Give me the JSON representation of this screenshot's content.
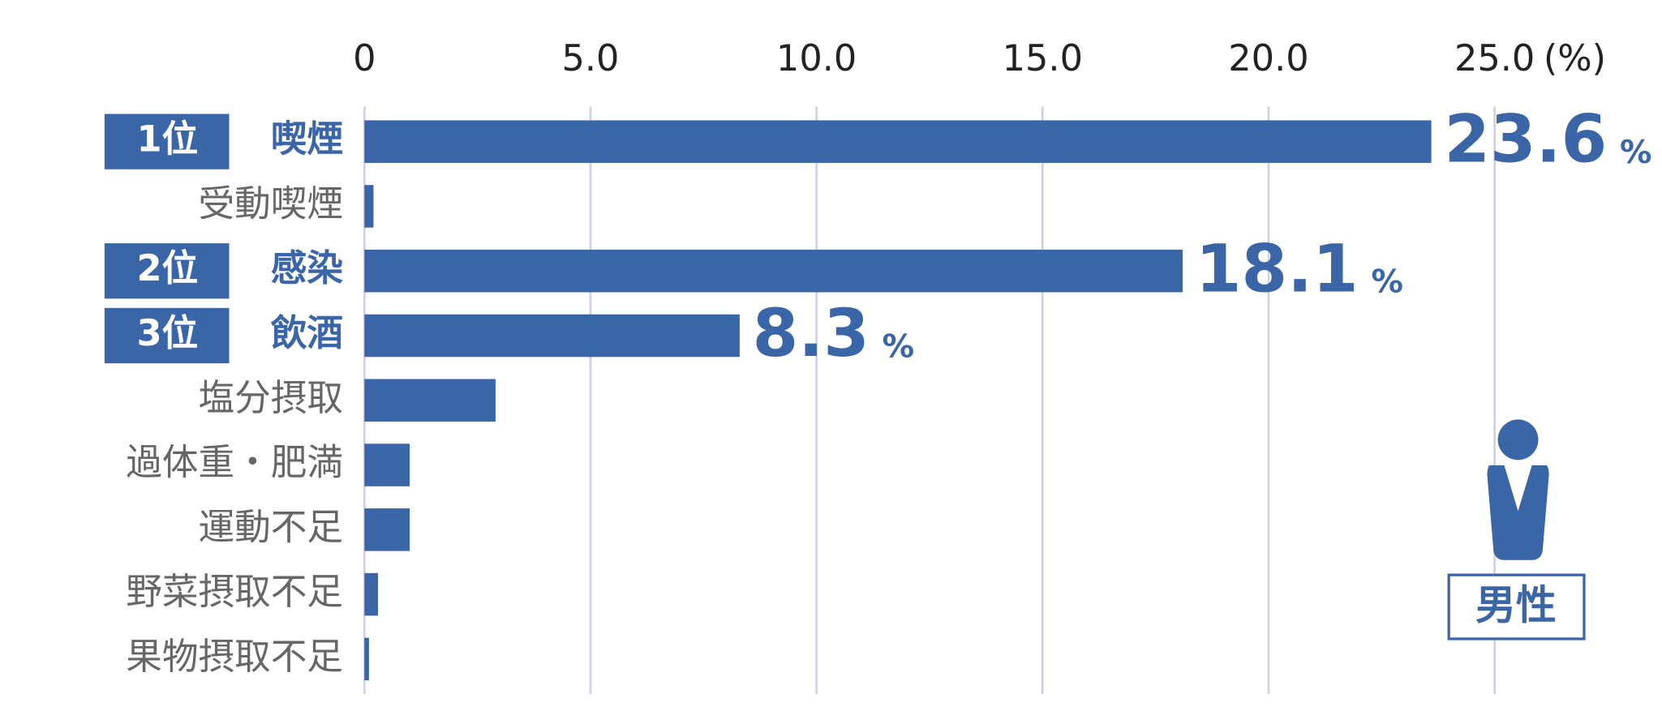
{
  "chart_data": {
    "type": "hbar",
    "categories": [
      "喫煙",
      "受動喫煙",
      "感染",
      "飲酒",
      "塩分摂取",
      "過体重・肥満",
      "運動不足",
      "野菜摂取不足",
      "果物摂取不足"
    ],
    "values": [
      23.6,
      0.2,
      18.1,
      8.3,
      2.9,
      1.0,
      1.0,
      0.3,
      0.1
    ],
    "ranks": [
      "1位",
      null,
      "2位",
      "3位",
      null,
      null,
      null,
      null,
      null
    ],
    "value_unit": "%",
    "axis_unit": "(%)",
    "group_label": "男性",
    "color": "#3a66a8",
    "xlim": [
      0,
      25
    ],
    "xticks": [
      0,
      {
        "value": 5,
        "label": "5.0"
      },
      {
        "value": 10,
        "label": "10.0"
      },
      {
        "value": 15,
        "label": "15.0"
      },
      {
        "value": 20,
        "label": "20.0"
      },
      {
        "value": 25,
        "label": "25.0"
      }
    ],
    "grid": true
  }
}
